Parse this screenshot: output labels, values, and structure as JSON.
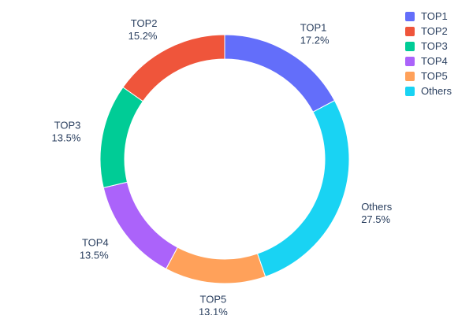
{
  "chart_data": {
    "type": "pie",
    "hole": 0.8,
    "title": "",
    "labels": [
      "TOP1",
      "TOP2",
      "TOP3",
      "TOP4",
      "TOP5",
      "Others"
    ],
    "values": [
      17.2,
      15.2,
      13.5,
      13.5,
      13.1,
      27.5
    ],
    "display_percents": [
      "17.2%",
      "15.2%",
      "13.5%",
      "13.5%",
      "13.1%",
      "27.5%"
    ],
    "colors": [
      "#636efa",
      "#ef553b",
      "#00cc96",
      "#ab63fa",
      "#ffa15a",
      "#19d3f3"
    ],
    "clockwise_order": [
      0,
      5,
      4,
      3,
      2,
      1
    ],
    "start_angle_deg": 0,
    "direction_first_slice": "clockwise-from-top",
    "text_color": "#2a3f5f",
    "legend": {
      "position": "top-right",
      "entries": [
        "TOP1",
        "TOP2",
        "TOP3",
        "TOP4",
        "TOP5",
        "Others"
      ]
    }
  }
}
